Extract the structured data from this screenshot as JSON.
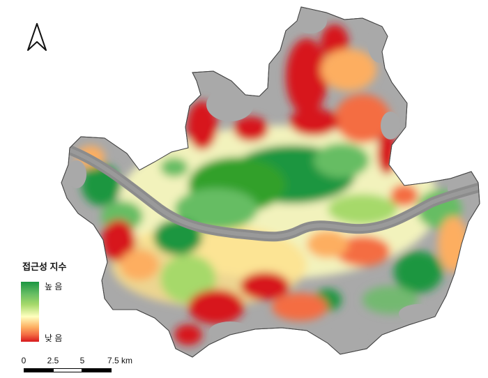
{
  "legend": {
    "title": "접근성 지수",
    "high_label": "높 음",
    "low_label": "낮 음",
    "colors": [
      "#1a9641",
      "#66bd63",
      "#a6d96a",
      "#ffffbf",
      "#fdae61",
      "#f46d43",
      "#d7191c"
    ]
  },
  "scale_bar": {
    "labels": [
      "0",
      "2.5",
      "5",
      "7.5 km"
    ]
  },
  "north_arrow": {
    "icon": "north-arrow-icon"
  },
  "colors": {
    "land": "#a9a9a9",
    "river": "#8c8c8c",
    "high": "#1a9641",
    "mid": "#ffffbf",
    "low": "#d7191c"
  }
}
